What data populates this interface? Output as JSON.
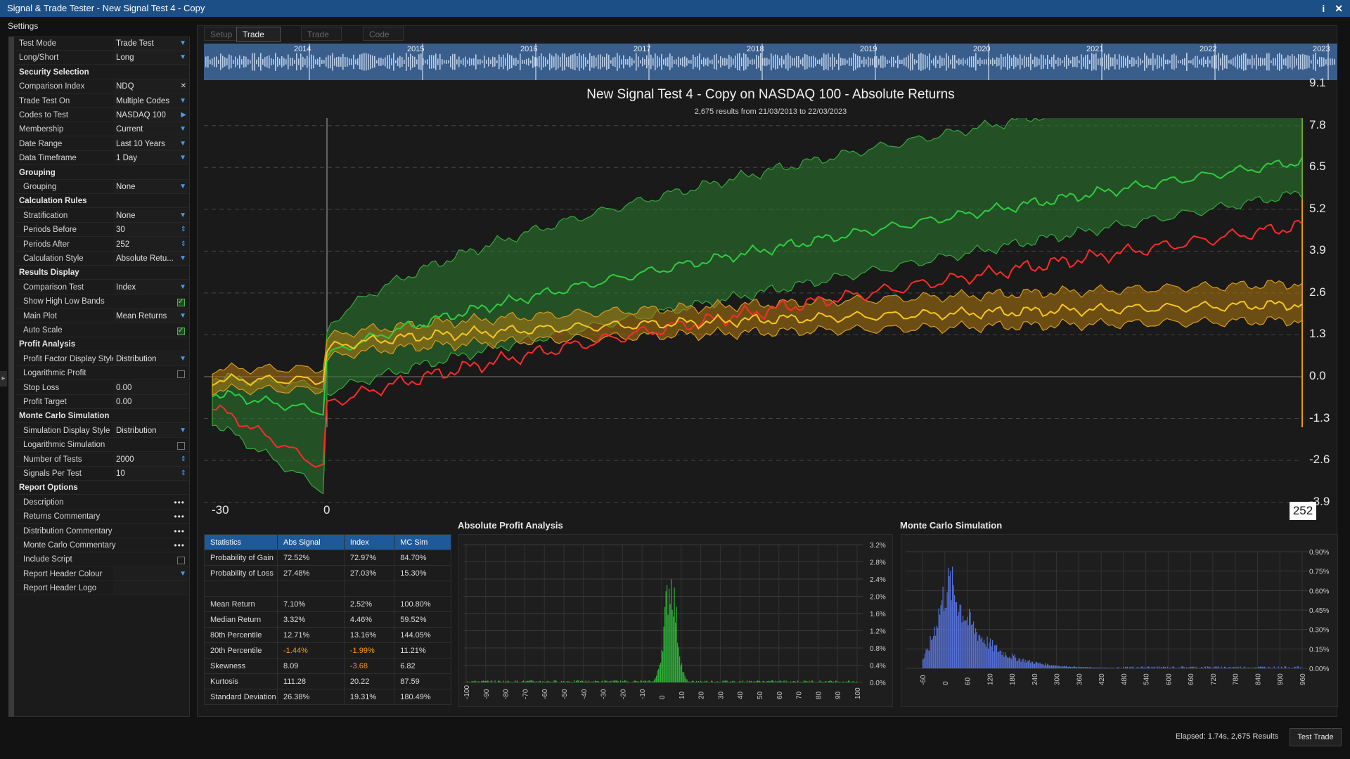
{
  "window": {
    "title": "Signal & Trade Tester - New Signal Test 4 - Copy",
    "info_glyph": "i",
    "close_glyph": "✕"
  },
  "settings": {
    "label": "Settings",
    "rows": [
      {
        "type": "field",
        "label": "Test Mode",
        "value": "Trade Test",
        "control": "dropdown"
      },
      {
        "type": "field",
        "label": "Long/Short",
        "value": "Long",
        "control": "dropdown"
      },
      {
        "type": "section",
        "label": "Security Selection"
      },
      {
        "type": "field",
        "label": "Comparison Index",
        "value": "NDQ",
        "control": "clear"
      },
      {
        "type": "field",
        "label": "Trade Test On",
        "value": "Multiple Codes",
        "control": "dropdown"
      },
      {
        "type": "field",
        "label": "Codes to Test",
        "value": "NASDAQ 100",
        "control": "arrow"
      },
      {
        "type": "field",
        "label": "Membership",
        "value": "Current",
        "control": "dropdown"
      },
      {
        "type": "field",
        "label": "Date Range",
        "value": "Last 10 Years",
        "control": "dropdown"
      },
      {
        "type": "field",
        "label": "Data Timeframe",
        "value": "1 Day",
        "control": "dropdown"
      },
      {
        "type": "section",
        "label": "Grouping"
      },
      {
        "type": "field",
        "label": "Grouping",
        "value": "None",
        "control": "dropdown",
        "indent": true
      },
      {
        "type": "section",
        "label": "Calculation Rules"
      },
      {
        "type": "field",
        "label": "Stratification",
        "value": "None",
        "control": "dropdown",
        "indent": true
      },
      {
        "type": "field",
        "label": "Periods Before",
        "value": "30",
        "control": "spinner",
        "indent": true
      },
      {
        "type": "field",
        "label": "Periods After",
        "value": "252",
        "control": "spinner",
        "indent": true
      },
      {
        "type": "field",
        "label": "Calculation Style",
        "value": "Absolute Retu...",
        "control": "dropdown",
        "indent": true
      },
      {
        "type": "section",
        "label": "Results Display"
      },
      {
        "type": "field",
        "label": "Comparison Test",
        "value": "Index",
        "control": "dropdown",
        "indent": true
      },
      {
        "type": "field",
        "label": "Show High Low Bands",
        "value": "",
        "control": "checkbox",
        "checked": true,
        "indent": true
      },
      {
        "type": "field",
        "label": "Main Plot",
        "value": "Mean Returns",
        "control": "dropdown",
        "indent": true
      },
      {
        "type": "field",
        "label": "Auto Scale",
        "value": "",
        "control": "checkbox",
        "checked": true,
        "indent": true
      },
      {
        "type": "section",
        "label": "Profit Analysis"
      },
      {
        "type": "field",
        "label": "Profit Factor Display Style",
        "value": "Distribution",
        "control": "dropdown",
        "indent": true
      },
      {
        "type": "field",
        "label": "Logarithmic Profit",
        "value": "",
        "control": "checkbox",
        "checked": false,
        "indent": true
      },
      {
        "type": "field",
        "label": "Stop Loss",
        "value": "0.00",
        "control": "none",
        "indent": true
      },
      {
        "type": "field",
        "label": "Profit Target",
        "value": "0.00",
        "control": "none",
        "indent": true
      },
      {
        "type": "section",
        "label": "Monte Carlo Simulation"
      },
      {
        "type": "field",
        "label": "Simulation Display Style",
        "value": "Distribution",
        "control": "dropdown",
        "indent": true
      },
      {
        "type": "field",
        "label": "Logarithmic Simulation",
        "value": "",
        "control": "checkbox",
        "checked": false,
        "indent": true
      },
      {
        "type": "field",
        "label": "Number of Tests",
        "value": "2000",
        "control": "spinner",
        "indent": true
      },
      {
        "type": "field",
        "label": "Signals Per Test",
        "value": "10",
        "control": "spinner",
        "indent": true
      },
      {
        "type": "section",
        "label": "Report Options"
      },
      {
        "type": "field",
        "label": "Description",
        "value": "",
        "control": "dots",
        "indent": true
      },
      {
        "type": "field",
        "label": "Returns Commentary",
        "value": "",
        "control": "dots",
        "indent": true
      },
      {
        "type": "field",
        "label": "Distribution Commentary",
        "value": "",
        "control": "dots",
        "indent": true
      },
      {
        "type": "field",
        "label": "Monte Carlo Commentary",
        "value": "",
        "control": "dots",
        "indent": true
      },
      {
        "type": "field",
        "label": "Include Script",
        "value": "",
        "control": "checkbox",
        "checked": false,
        "indent": true
      },
      {
        "type": "field",
        "label": "Report Header Colour",
        "value": "",
        "control": "dropdown",
        "indent": true
      },
      {
        "type": "field",
        "label": "Report Header Logo",
        "value": "",
        "control": "none",
        "indent": true
      }
    ]
  },
  "tabs": [
    {
      "label": "Setup",
      "active": false
    },
    {
      "label": "Trade Analysis",
      "active": true
    },
    {
      "label": "Trade Results",
      "active": false
    },
    {
      "label": "Code Results",
      "active": false
    }
  ],
  "timeline": {
    "years": [
      "2014",
      "2015",
      "2016",
      "2017",
      "2018",
      "2019",
      "2020",
      "2021",
      "2022",
      "2023"
    ]
  },
  "main_chart": {
    "title": "New Signal Test 4 - Copy on NASDAQ 100 - Absolute Returns",
    "subtitle": "2,675 results from 21/03/2013 to 22/03/2023",
    "x_start": "-30",
    "x_signal": "0",
    "x_end": "252",
    "y_ticks": [
      "9.1",
      "7.8",
      "6.5",
      "5.2",
      "3.9",
      "2.6",
      "1.3",
      "0.0",
      "-1.3",
      "-2.6",
      "-3.9"
    ],
    "colors": {
      "signal": "#2ecc40",
      "band": "#2e7d32",
      "index": "#ff2a2a",
      "mc": "#f7c520",
      "mc_band": "#b07a10"
    }
  },
  "statistics": {
    "headers": [
      "Statistics",
      "Abs Signal",
      "Index",
      "MC Sim"
    ],
    "rows": [
      [
        "Probability of Gain",
        "72.52%",
        "72.97%",
        "84.70%"
      ],
      [
        "Probability of Loss",
        "27.48%",
        "27.03%",
        "15.30%"
      ],
      [
        "",
        "",
        "",
        ""
      ],
      [
        "Mean Return",
        "7.10%",
        "2.52%",
        "100.80%"
      ],
      [
        "Median Return",
        "3.32%",
        "4.46%",
        "59.52%"
      ],
      [
        "80th Percentile",
        "12.71%",
        "13.16%",
        "144.05%"
      ],
      [
        "20th Percentile",
        "-1.44%",
        "-1.99%",
        "11.21%"
      ],
      [
        "Skewness",
        "8.09",
        "-3.68",
        "6.82"
      ],
      [
        "Kurtosis",
        "111.28",
        "20.22",
        "87.59"
      ],
      [
        "Standard Deviation",
        "26.38%",
        "19.31%",
        "180.49%"
      ]
    ]
  },
  "profit_analysis": {
    "title": "Absolute Profit Analysis",
    "y_ticks": [
      "3.2%",
      "2.8%",
      "2.4%",
      "2.0%",
      "1.6%",
      "1.2%",
      "0.8%",
      "0.4%",
      "0.0%"
    ],
    "x_ticks": [
      "-100",
      "-90",
      "-80",
      "-70",
      "-60",
      "-50",
      "-40",
      "-30",
      "-20",
      "-10",
      "0",
      "10",
      "20",
      "30",
      "40",
      "50",
      "60",
      "70",
      "80",
      "90",
      "100"
    ],
    "color": "#2fbf3a"
  },
  "monte_carlo": {
    "title": "Monte Carlo Simulation",
    "y_ticks": [
      "0.90%",
      "0.75%",
      "0.60%",
      "0.45%",
      "0.30%",
      "0.15%",
      "0.00%"
    ],
    "x_ticks": [
      "-60",
      "0",
      "60",
      "120",
      "180",
      "240",
      "300",
      "360",
      "420",
      "480",
      "540",
      "600",
      "660",
      "720",
      "780",
      "840",
      "900",
      "960"
    ],
    "color": "#5a78e8"
  },
  "status": {
    "elapsed": "Elapsed: 1.74s, 2,675 Results",
    "button": "Test Trade"
  }
}
